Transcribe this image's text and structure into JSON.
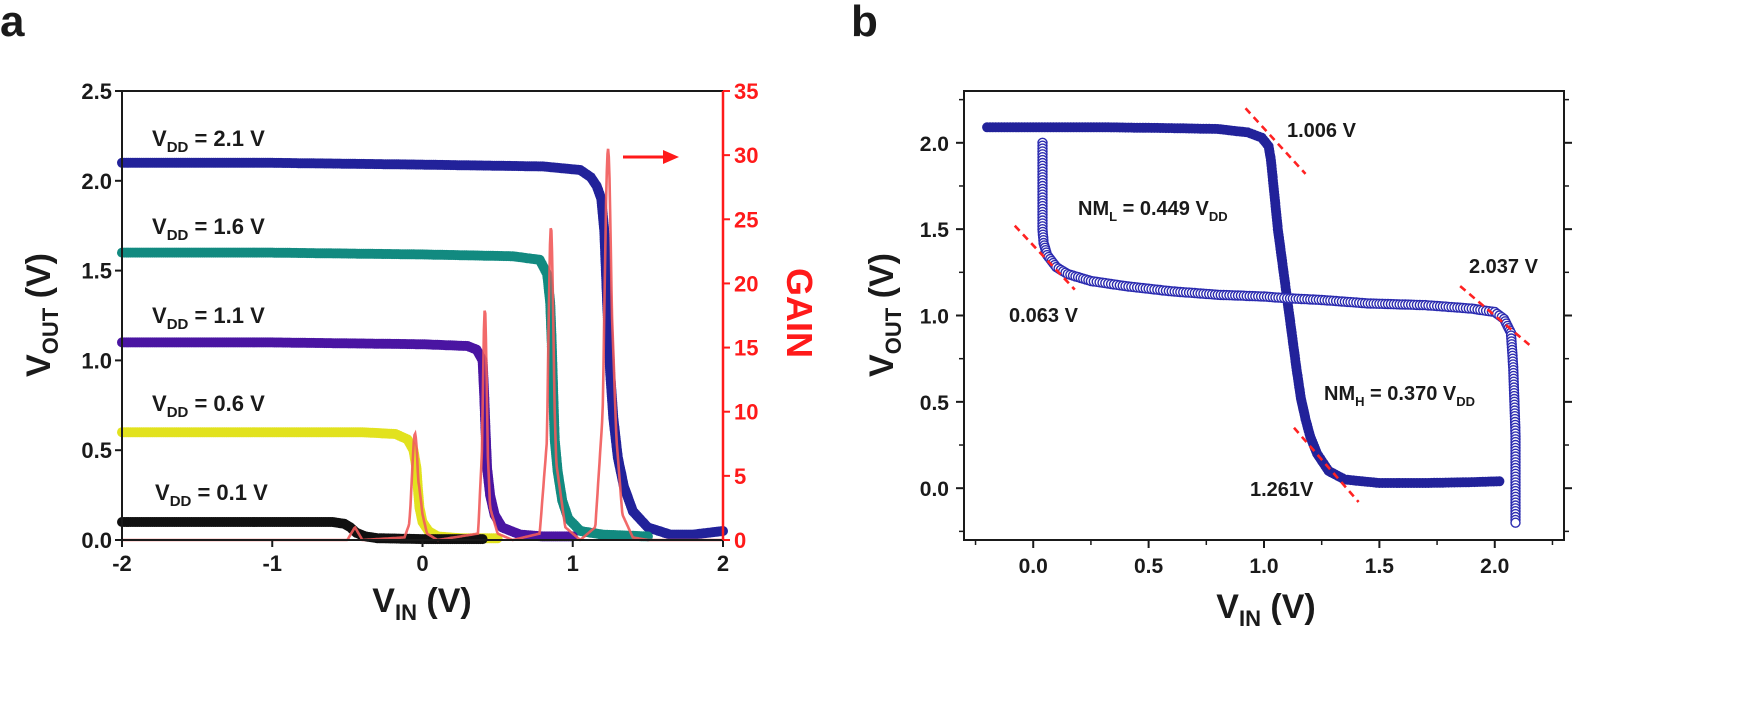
{
  "panels": {
    "a": {
      "letter": "a"
    },
    "b": {
      "letter": "b"
    }
  },
  "colors": {
    "axis": "#1a1a1a",
    "red": "#ff1a1a",
    "gain_line": "#f15a5a",
    "navy": "#22229a",
    "teal": "#128a80",
    "purple": "#4a15a2",
    "yellow": "#e2e21e",
    "black": "#111111",
    "marker_edge": "#2b2bb0",
    "guide": "#ff2222"
  },
  "chart_data": [
    {
      "panel": "a",
      "type": "line",
      "xlabel": {
        "main": "V",
        "sub": "IN",
        "rest": " (V)"
      },
      "ylabel": {
        "main": "V",
        "sub": "OUT",
        "rest": " (V)"
      },
      "y2label": "GAIN",
      "xlim": [
        -2,
        2
      ],
      "ylim": [
        0,
        2.5
      ],
      "y2lim": [
        0,
        35
      ],
      "xticks": [
        "-2",
        "-1",
        "0",
        "1",
        "2"
      ],
      "xtick_values": [
        -2,
        -1,
        0,
        1,
        2
      ],
      "yticks": [
        "0.0",
        "0.5",
        "1.0",
        "1.5",
        "2.0",
        "2.5"
      ],
      "ytick_values": [
        0,
        0.5,
        1.0,
        1.5,
        2.0,
        2.5
      ],
      "y2ticks": [
        "0",
        "5",
        "10",
        "15",
        "20",
        "25",
        "30",
        "35"
      ],
      "y2tick_values": [
        0,
        5,
        10,
        15,
        20,
        25,
        30,
        35
      ],
      "arrow_direction": "right",
      "series": [
        {
          "name": "V_DD = 2.1 V",
          "label_main": "V",
          "label_sub": "DD",
          "label_rest": " = 2.1 V",
          "color": "#22229a",
          "points": [
            [
              -2.0,
              2.1
            ],
            [
              -1.0,
              2.1
            ],
            [
              0.0,
              2.09
            ],
            [
              0.8,
              2.08
            ],
            [
              1.05,
              2.06
            ],
            [
              1.12,
              2.02
            ],
            [
              1.16,
              1.97
            ],
            [
              1.19,
              1.9
            ],
            [
              1.21,
              1.72
            ],
            [
              1.23,
              1.3
            ],
            [
              1.25,
              0.92
            ],
            [
              1.27,
              0.68
            ],
            [
              1.3,
              0.46
            ],
            [
              1.34,
              0.3
            ],
            [
              1.4,
              0.16
            ],
            [
              1.5,
              0.07
            ],
            [
              1.65,
              0.03
            ],
            [
              1.8,
              0.03
            ],
            [
              2.0,
              0.05
            ]
          ]
        },
        {
          "name": "V_DD = 1.6 V",
          "label_main": "V",
          "label_sub": "DD",
          "label_rest": " = 1.6 V",
          "color": "#128a80",
          "points": [
            [
              -2.0,
              1.6
            ],
            [
              -1.0,
              1.6
            ],
            [
              0.0,
              1.59
            ],
            [
              0.6,
              1.58
            ],
            [
              0.78,
              1.56
            ],
            [
              0.83,
              1.48
            ],
            [
              0.85,
              1.32
            ],
            [
              0.86,
              1.1
            ],
            [
              0.87,
              0.82
            ],
            [
              0.88,
              0.56
            ],
            [
              0.9,
              0.38
            ],
            [
              0.93,
              0.22
            ],
            [
              0.97,
              0.12
            ],
            [
              1.05,
              0.05
            ],
            [
              1.2,
              0.03
            ],
            [
              1.5,
              0.02
            ]
          ]
        },
        {
          "name": "V_DD = 1.1 V",
          "label_main": "V",
          "label_sub": "DD",
          "label_rest": " = 1.1 V",
          "color": "#4a15a2",
          "points": [
            [
              -2.0,
              1.1
            ],
            [
              -1.0,
              1.1
            ],
            [
              0.0,
              1.09
            ],
            [
              0.3,
              1.08
            ],
            [
              0.36,
              1.06
            ],
            [
              0.4,
              1.0
            ],
            [
              0.41,
              0.82
            ],
            [
              0.42,
              0.6
            ],
            [
              0.43,
              0.4
            ],
            [
              0.45,
              0.25
            ],
            [
              0.48,
              0.14
            ],
            [
              0.53,
              0.07
            ],
            [
              0.65,
              0.03
            ],
            [
              0.8,
              0.02
            ],
            [
              1.0,
              0.02
            ]
          ]
        },
        {
          "name": "V_DD = 0.6 V",
          "label_main": "V",
          "label_sub": "DD",
          "label_rest": " = 0.6 V",
          "color": "#e2e21e",
          "points": [
            [
              -2.0,
              0.6
            ],
            [
              -1.0,
              0.6
            ],
            [
              -0.4,
              0.6
            ],
            [
              -0.18,
              0.59
            ],
            [
              -0.1,
              0.56
            ],
            [
              -0.06,
              0.5
            ],
            [
              -0.04,
              0.4
            ],
            [
              -0.03,
              0.28
            ],
            [
              -0.02,
              0.18
            ],
            [
              0.0,
              0.1
            ],
            [
              0.04,
              0.05
            ],
            [
              0.1,
              0.02
            ],
            [
              0.25,
              0.01
            ],
            [
              0.5,
              0.01
            ]
          ]
        },
        {
          "name": "V_DD = 0.1 V",
          "label_main": "V",
          "label_sub": "DD",
          "label_rest": " = 0.1 V",
          "color": "#111111",
          "points": [
            [
              -2.0,
              0.1
            ],
            [
              -1.0,
              0.1
            ],
            [
              -0.6,
              0.1
            ],
            [
              -0.52,
              0.09
            ],
            [
              -0.48,
              0.07
            ],
            [
              -0.44,
              0.04
            ],
            [
              -0.38,
              0.02
            ],
            [
              -0.3,
              0.01
            ],
            [
              0.0,
              0.005
            ],
            [
              0.4,
              0.005
            ]
          ]
        }
      ],
      "gain": {
        "color": "#f15a5a",
        "peaks": [
          {
            "center": -0.05,
            "height": 8.3,
            "width": 0.02
          },
          {
            "center": 0.415,
            "height": 18.0,
            "width": 0.014
          },
          {
            "center": 0.855,
            "height": 24.4,
            "width": 0.018
          },
          {
            "center": 1.235,
            "height": 30.5,
            "width": 0.024
          }
        ],
        "points": [
          [
            -2.0,
            0.0
          ],
          [
            -0.5,
            0.0
          ],
          [
            -0.45,
            1.0
          ],
          [
            -0.4,
            0.0
          ],
          [
            -0.12,
            0.2
          ],
          [
            -0.08,
            1.5
          ],
          [
            -0.06,
            5.0
          ],
          [
            -0.05,
            8.3
          ],
          [
            -0.04,
            5.5
          ],
          [
            -0.02,
            4.0
          ],
          [
            0.0,
            2.0
          ],
          [
            0.03,
            0.5
          ],
          [
            0.1,
            0.0
          ],
          [
            0.37,
            0.5
          ],
          [
            0.4,
            8.0
          ],
          [
            0.415,
            18.0
          ],
          [
            0.43,
            8.0
          ],
          [
            0.45,
            2.5
          ],
          [
            0.5,
            0.5
          ],
          [
            0.6,
            0.0
          ],
          [
            0.78,
            0.5
          ],
          [
            0.83,
            8.0
          ],
          [
            0.855,
            24.4
          ],
          [
            0.87,
            14.0
          ],
          [
            0.89,
            6.0
          ],
          [
            0.95,
            1.0
          ],
          [
            1.05,
            0.0
          ],
          [
            1.15,
            1.0
          ],
          [
            1.2,
            10.0
          ],
          [
            1.235,
            30.5
          ],
          [
            1.26,
            18.0
          ],
          [
            1.29,
            8.0
          ],
          [
            1.33,
            2.0
          ],
          [
            1.4,
            0.2
          ],
          [
            1.5,
            0.0
          ],
          [
            2.0,
            0.0
          ]
        ]
      }
    },
    {
      "panel": "b",
      "type": "line",
      "xlabel": {
        "main": "V",
        "sub": "IN",
        "rest": " (V)"
      },
      "ylabel": {
        "main": "V",
        "sub": "OUT",
        "rest": " (V)"
      },
      "xlim": [
        -0.3,
        2.3
      ],
      "ylim": [
        -0.3,
        2.3
      ],
      "xticks": [
        "0.0",
        "0.5",
        "1.0",
        "1.5",
        "2.0"
      ],
      "xtick_values": [
        0.0,
        0.5,
        1.0,
        1.5,
        2.0
      ],
      "yticks": [
        "0.0",
        "0.5",
        "1.0",
        "1.5",
        "2.0"
      ],
      "ytick_values": [
        0.0,
        0.5,
        1.0,
        1.5,
        2.0
      ],
      "series": [
        {
          "marker": "filled",
          "points": [
            [
              -0.2,
              2.09
            ],
            [
              0.0,
              2.09
            ],
            [
              0.3,
              2.09
            ],
            [
              0.6,
              2.085
            ],
            [
              0.8,
              2.08
            ],
            [
              0.93,
              2.06
            ],
            [
              0.99,
              2.03
            ],
            [
              1.02,
              1.98
            ],
            [
              1.03,
              1.9
            ],
            [
              1.06,
              1.5
            ],
            [
              1.08,
              1.3
            ],
            [
              1.1,
              1.1
            ],
            [
              1.12,
              0.9
            ],
            [
              1.14,
              0.7
            ],
            [
              1.16,
              0.52
            ],
            [
              1.18,
              0.4
            ],
            [
              1.2,
              0.3
            ],
            [
              1.23,
              0.2
            ],
            [
              1.28,
              0.1
            ],
            [
              1.35,
              0.05
            ],
            [
              1.5,
              0.03
            ],
            [
              1.7,
              0.03
            ],
            [
              1.9,
              0.035
            ],
            [
              2.02,
              0.04
            ]
          ]
        },
        {
          "marker": "open",
          "points": [
            [
              0.04,
              2.0
            ],
            [
              0.04,
              1.7
            ],
            [
              0.04,
              1.5
            ],
            [
              0.045,
              1.42
            ],
            [
              0.06,
              1.35
            ],
            [
              0.1,
              1.28
            ],
            [
              0.15,
              1.24
            ],
            [
              0.25,
              1.2
            ],
            [
              0.4,
              1.17
            ],
            [
              0.6,
              1.14
            ],
            [
              0.8,
              1.12
            ],
            [
              1.0,
              1.11
            ],
            [
              1.1,
              1.1
            ],
            [
              1.25,
              1.09
            ],
            [
              1.45,
              1.07
            ],
            [
              1.7,
              1.06
            ],
            [
              1.9,
              1.04
            ],
            [
              2.0,
              1.02
            ],
            [
              2.04,
              0.98
            ],
            [
              2.07,
              0.9
            ],
            [
              2.08,
              0.7
            ],
            [
              2.09,
              0.3
            ],
            [
              2.09,
              0.0
            ],
            [
              2.09,
              -0.2
            ]
          ]
        }
      ],
      "guides": [
        {
          "x1": 0.92,
          "y1": 2.2,
          "x2": 1.18,
          "y2": 1.82
        },
        {
          "x1": -0.08,
          "y1": 1.52,
          "x2": 0.18,
          "y2": 1.15
        },
        {
          "x1": 1.85,
          "y1": 1.17,
          "x2": 2.15,
          "y2": 0.83
        },
        {
          "x1": 1.13,
          "y1": 0.35,
          "x2": 1.41,
          "y2": -0.08
        }
      ],
      "annotations": [
        {
          "text": "1.006 V"
        },
        {
          "text": "0.063 V"
        },
        {
          "text": "2.037 V"
        },
        {
          "text": "1.261V"
        },
        {
          "main": "NM",
          "sub": "L",
          "rest": " = 0.449 V",
          "sub2": "DD"
        },
        {
          "main": "NM",
          "sub": "H",
          "rest": " = 0.370  V",
          "sub2": "DD"
        }
      ]
    }
  ]
}
